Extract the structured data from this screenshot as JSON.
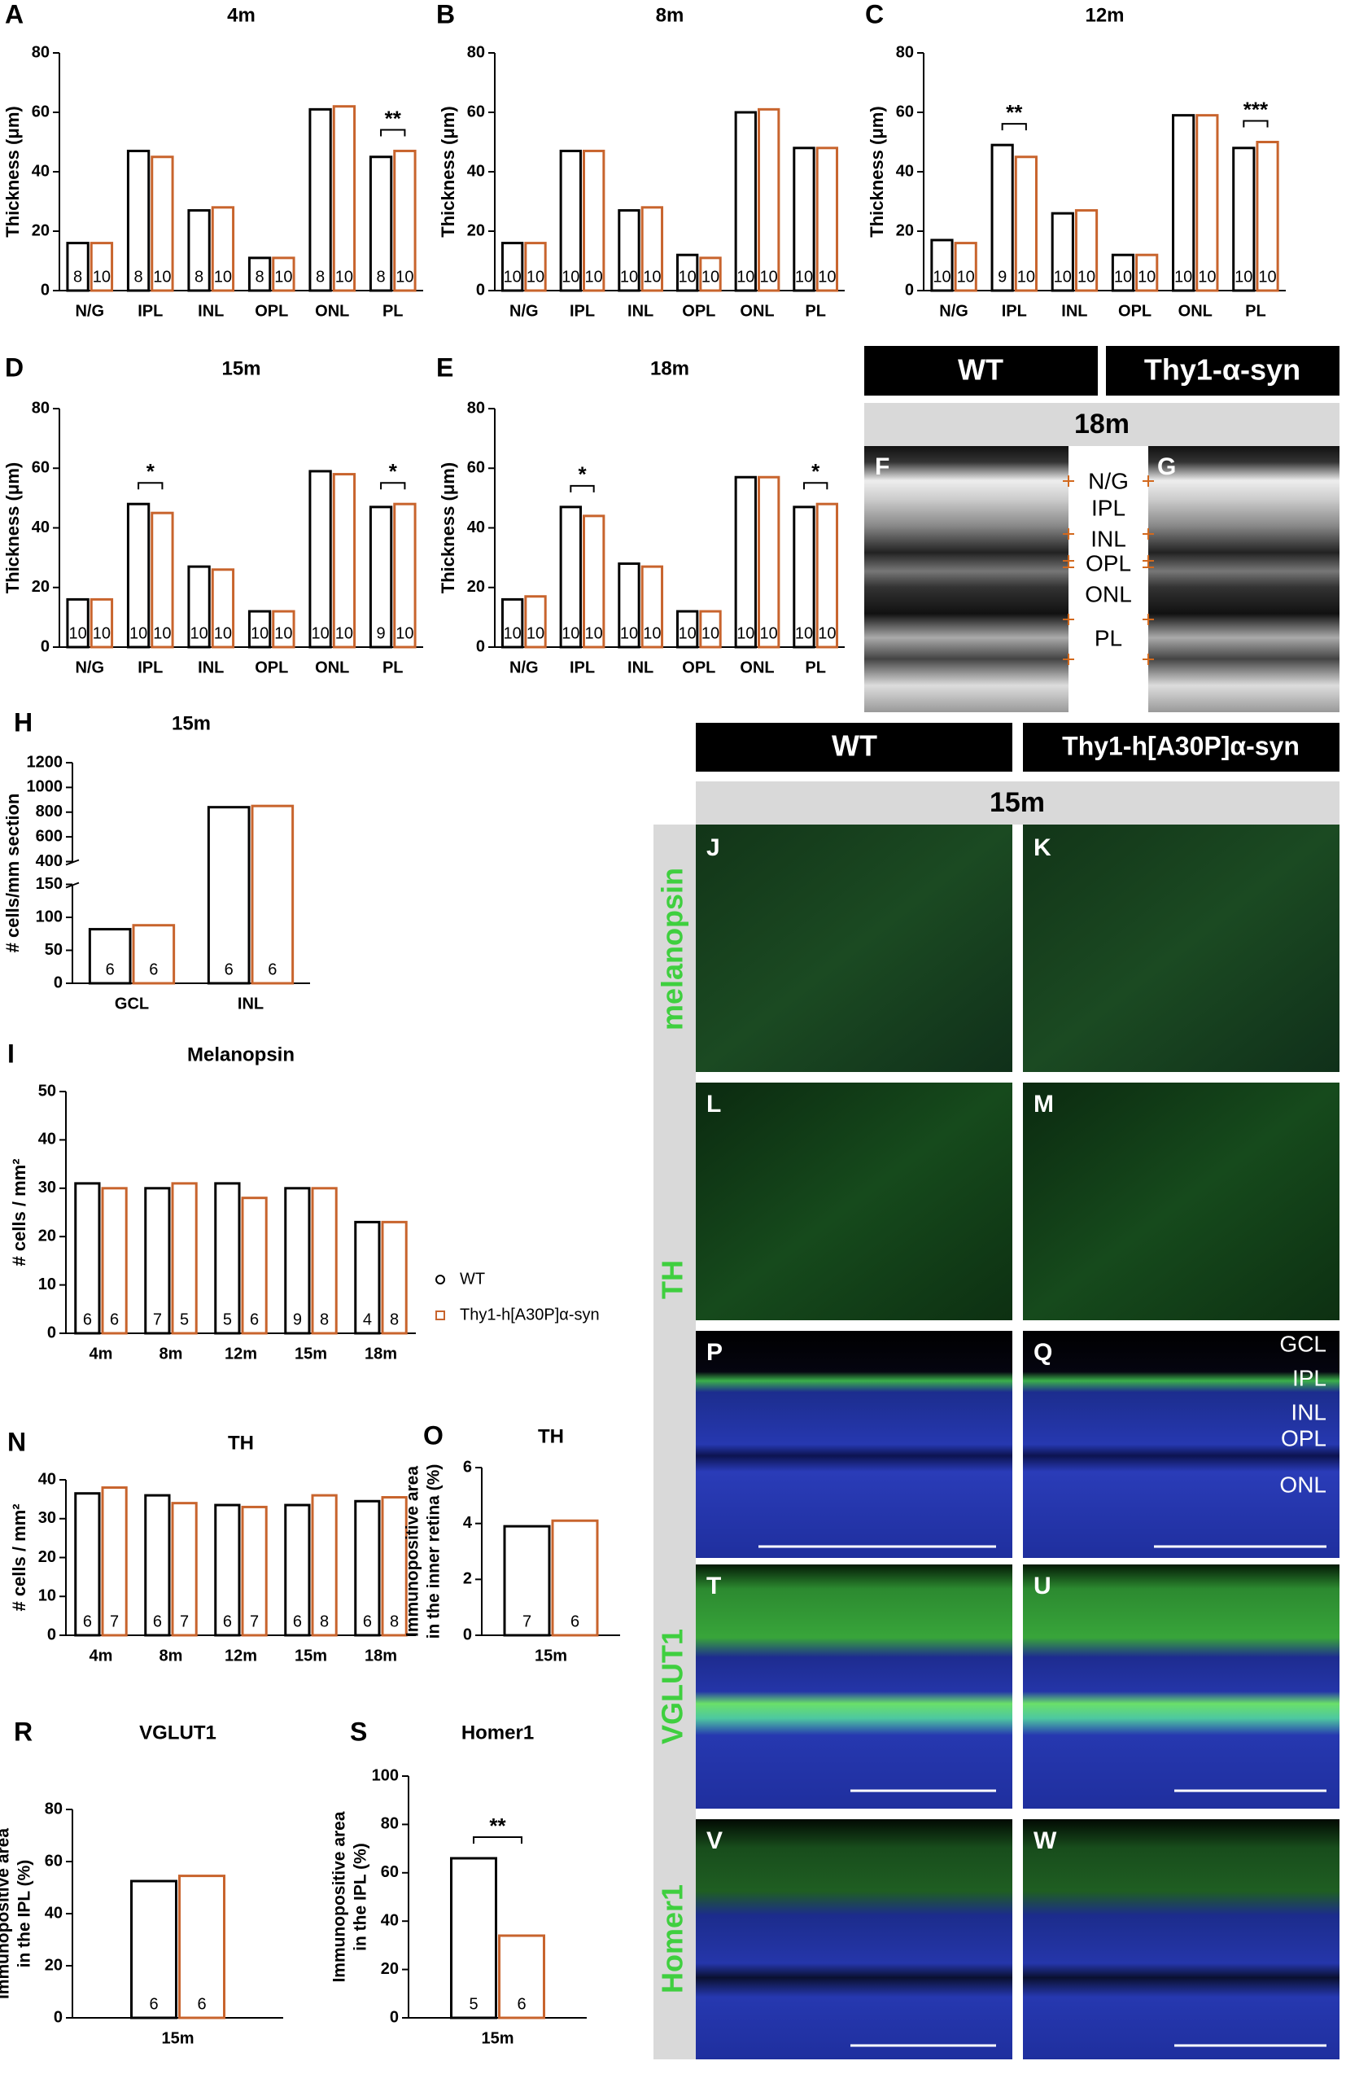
{
  "chart_data": [
    {
      "type": "bar",
      "label": "A",
      "title": "4m",
      "ylabel": "Thickness (μm)",
      "categories": [
        "N/G",
        "IPL",
        "INL",
        "OPL",
        "ONL",
        "PL"
      ],
      "series": [
        {
          "color": "#000000",
          "values": [
            16,
            47,
            27,
            11,
            61,
            45
          ],
          "n": [
            8,
            8,
            8,
            8,
            8,
            8
          ]
        },
        {
          "color": "#c8642d",
          "values": [
            16,
            45,
            28,
            11,
            62,
            47
          ],
          "n": [
            10,
            10,
            10,
            10,
            10,
            10
          ]
        }
      ],
      "ylim": [
        0,
        80
      ],
      "yticks": [
        0,
        20,
        40,
        60,
        80
      ],
      "annotations": [
        {
          "text": "**",
          "category": "PL"
        }
      ]
    },
    {
      "type": "bar",
      "label": "B",
      "title": "8m",
      "ylabel": "Thickness (μm)",
      "categories": [
        "N/G",
        "IPL",
        "INL",
        "OPL",
        "ONL",
        "PL"
      ],
      "series": [
        {
          "color": "#000000",
          "values": [
            16,
            47,
            27,
            12,
            60,
            48
          ],
          "n": [
            10,
            10,
            10,
            10,
            10,
            10
          ]
        },
        {
          "color": "#c8642d",
          "values": [
            16,
            47,
            28,
            11,
            61,
            48
          ],
          "n": [
            10,
            10,
            10,
            10,
            10,
            10
          ]
        }
      ],
      "ylim": [
        0,
        80
      ],
      "yticks": [
        0,
        20,
        40,
        60,
        80
      ]
    },
    {
      "type": "bar",
      "label": "C",
      "title": "12m",
      "ylabel": "Thickness (μm)",
      "categories": [
        "N/G",
        "IPL",
        "INL",
        "OPL",
        "ONL",
        "PL"
      ],
      "series": [
        {
          "color": "#000000",
          "values": [
            17,
            49,
            26,
            12,
            59,
            48
          ],
          "n": [
            10,
            9,
            10,
            10,
            10,
            10
          ]
        },
        {
          "color": "#c8642d",
          "values": [
            16,
            45,
            27,
            12,
            59,
            50
          ],
          "n": [
            10,
            10,
            10,
            10,
            10,
            10
          ]
        }
      ],
      "ylim": [
        0,
        80
      ],
      "yticks": [
        0,
        20,
        40,
        60,
        80
      ],
      "annotations": [
        {
          "text": "**",
          "category": "IPL"
        },
        {
          "text": "***",
          "category": "PL"
        }
      ]
    },
    {
      "type": "bar",
      "label": "D",
      "title": "15m",
      "ylabel": "Thickness (μm)",
      "categories": [
        "N/G",
        "IPL",
        "INL",
        "OPL",
        "ONL",
        "PL"
      ],
      "series": [
        {
          "color": "#000000",
          "values": [
            16,
            48,
            27,
            12,
            59,
            47
          ],
          "n": [
            10,
            10,
            10,
            10,
            10,
            9
          ]
        },
        {
          "color": "#c8642d",
          "values": [
            16,
            45,
            26,
            12,
            58,
            48
          ],
          "n": [
            10,
            10,
            10,
            10,
            10,
            10
          ]
        }
      ],
      "ylim": [
        0,
        80
      ],
      "yticks": [
        0,
        20,
        40,
        60,
        80
      ],
      "annotations": [
        {
          "text": "*",
          "category": "IPL"
        },
        {
          "text": "*",
          "category": "PL"
        }
      ]
    },
    {
      "type": "bar",
      "label": "E",
      "title": "18m",
      "ylabel": "Thickness (μm)",
      "categories": [
        "N/G",
        "IPL",
        "INL",
        "OPL",
        "ONL",
        "PL"
      ],
      "series": [
        {
          "color": "#000000",
          "values": [
            16,
            47,
            28,
            12,
            57,
            47
          ],
          "n": [
            10,
            10,
            10,
            10,
            10,
            10
          ]
        },
        {
          "color": "#c8642d",
          "values": [
            17,
            44,
            27,
            12,
            57,
            48
          ],
          "n": [
            10,
            10,
            10,
            10,
            10,
            10
          ]
        }
      ],
      "ylim": [
        0,
        80
      ],
      "yticks": [
        0,
        20,
        40,
        60,
        80
      ],
      "annotations": [
        {
          "text": "*",
          "category": "IPL"
        },
        {
          "text": "*",
          "category": "PL"
        }
      ]
    },
    {
      "type": "bar",
      "label": "H",
      "title": "15m",
      "ylabel": "# cells/mm section",
      "categories": [
        "GCL",
        "INL"
      ],
      "series": [
        {
          "color": "#000000",
          "values": [
            82,
            840
          ],
          "n": [
            6,
            6
          ]
        },
        {
          "color": "#c8642d",
          "values": [
            88,
            850
          ],
          "n": [
            6,
            6
          ]
        }
      ],
      "ylim": [
        0,
        1200
      ],
      "ybreak": [
        150,
        400
      ],
      "yticks": [
        0,
        50,
        100,
        150,
        400,
        600,
        800,
        1000,
        1200
      ]
    },
    {
      "type": "bar",
      "label": "I",
      "title": "Melanopsin",
      "ylabel": "# cells / mm²",
      "categories": [
        "4m",
        "8m",
        "12m",
        "15m",
        "18m"
      ],
      "series": [
        {
          "name": "WT",
          "color": "#000000",
          "values": [
            31,
            30,
            31,
            30,
            23
          ],
          "n": [
            6,
            7,
            5,
            9,
            4
          ]
        },
        {
          "name": "Thy1-h[A30P]α-syn",
          "color": "#c8642d",
          "values": [
            30,
            31,
            28,
            30,
            23
          ],
          "n": [
            6,
            5,
            6,
            8,
            8
          ]
        }
      ],
      "ylim": [
        0,
        50
      ],
      "yticks": [
        0,
        10,
        20,
        30,
        40,
        50
      ],
      "legend": "right"
    },
    {
      "type": "bar",
      "label": "N",
      "title": "TH",
      "ylabel": "# cells / mm²",
      "categories": [
        "4m",
        "8m",
        "12m",
        "15m",
        "18m"
      ],
      "series": [
        {
          "color": "#000000",
          "values": [
            36.5,
            36,
            33.5,
            33.5,
            34.5
          ],
          "n": [
            6,
            6,
            6,
            6,
            6
          ]
        },
        {
          "color": "#c8642d",
          "values": [
            38,
            34,
            33,
            36,
            35.5
          ],
          "n": [
            7,
            7,
            7,
            8,
            8
          ]
        }
      ],
      "ylim": [
        0,
        40
      ],
      "yticks": [
        0,
        10,
        20,
        30,
        40
      ]
    },
    {
      "type": "bar",
      "label": "O",
      "title": "TH",
      "ylabel": [
        "Immunopositive area",
        "in the inner retina (%)"
      ],
      "categories": [
        "15m"
      ],
      "series": [
        {
          "color": "#000000",
          "values": [
            3.9
          ],
          "n": [
            7
          ]
        },
        {
          "color": "#c8642d",
          "values": [
            4.1
          ],
          "n": [
            6
          ]
        }
      ],
      "ylim": [
        0,
        6
      ],
      "yticks": [
        0,
        2,
        4,
        6
      ]
    },
    {
      "type": "bar",
      "label": "R",
      "title": "VGLUT1",
      "ylabel": [
        "Immunopositive area",
        "in the IPL (%)"
      ],
      "categories": [
        "15m"
      ],
      "series": [
        {
          "color": "#000000",
          "values": [
            52.5
          ],
          "n": [
            6
          ]
        },
        {
          "color": "#c8642d",
          "values": [
            54.5
          ],
          "n": [
            6
          ]
        }
      ],
      "ylim": [
        0,
        80
      ],
      "yticks": [
        0,
        20,
        40,
        60,
        80
      ]
    },
    {
      "type": "bar",
      "label": "S",
      "title": "Homer1",
      "ylabel": [
        "Immunopositive area",
        "in the IPL (%)"
      ],
      "categories": [
        "15m"
      ],
      "series": [
        {
          "color": "#000000",
          "values": [
            66
          ],
          "n": [
            5
          ]
        },
        {
          "color": "#c8642d",
          "values": [
            34
          ],
          "n": [
            6
          ]
        }
      ],
      "ylim": [
        0,
        100
      ],
      "yticks": [
        0,
        20,
        40,
        60,
        80,
        100
      ],
      "annotations": [
        {
          "text": "**",
          "category": "15m"
        }
      ]
    }
  ],
  "images": {
    "oct": {
      "headers": [
        "WT",
        "Thy1-α-syn"
      ],
      "age": "18m",
      "panels": [
        "F",
        "G"
      ],
      "layers": [
        "N/G",
        "IPL",
        "INL",
        "OPL",
        "ONL",
        "PL"
      ]
    },
    "stains": {
      "headers": [
        "WT",
        "Thy1-h[A30P]α-syn"
      ],
      "age": "15m",
      "rows": [
        "melanopsin",
        "TH",
        "VGLUT1",
        "Homer1"
      ],
      "panels": [
        "J",
        "K",
        "L",
        "M",
        "P",
        "Q",
        "T",
        "U",
        "V",
        "W"
      ],
      "layers": [
        "GCL",
        "IPL",
        "INL",
        "OPL",
        "ONL"
      ]
    }
  }
}
